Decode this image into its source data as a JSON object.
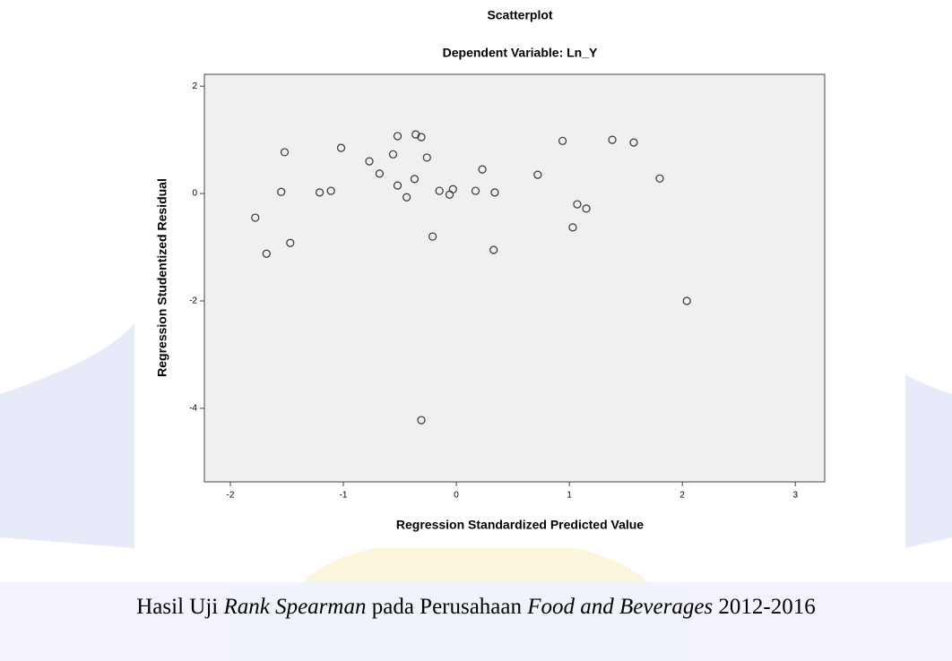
{
  "chart_data": {
    "type": "scatter",
    "title": "Scatterplot",
    "subtitle": "Dependent Variable: Ln_Y",
    "x_label": "Regression Standardized Predicted Value",
    "y_label": "Regression Studentized Residual",
    "color": "#333333",
    "xlim": [
      -2.23,
      3.26
    ],
    "ylim": [
      -5.37,
      2.22
    ],
    "xticks": [
      -2,
      -1,
      0,
      1,
      2,
      3
    ],
    "yticks": [
      -4,
      -2,
      0,
      2
    ],
    "x": [
      -1.78,
      -1.68,
      -1.55,
      -1.52,
      -1.47,
      -1.21,
      -1.11,
      -1.02,
      -0.77,
      -0.68,
      -0.56,
      -0.52,
      -0.52,
      -0.44,
      -0.36,
      -0.37,
      -0.31,
      -0.26,
      -0.21,
      -0.15,
      -0.06,
      -0.03,
      0.17,
      0.23,
      0.33,
      0.34,
      0.72,
      0.94,
      1.03,
      1.07,
      1.15,
      1.38,
      1.57,
      1.8,
      2.04,
      -0.31
    ],
    "values": [
      -0.45,
      -1.12,
      0.03,
      0.77,
      -0.92,
      0.02,
      0.05,
      0.85,
      0.6,
      0.37,
      0.73,
      1.07,
      0.15,
      -0.07,
      1.1,
      0.27,
      1.05,
      0.67,
      -0.8,
      0.05,
      -0.02,
      0.08,
      0.05,
      0.45,
      -1.05,
      0.02,
      0.35,
      0.98,
      -0.63,
      -0.2,
      -0.28,
      1.0,
      0.95,
      0.28,
      -2.0,
      -4.22
    ]
  },
  "caption": {
    "parts": [
      "Hasil Uji ",
      "Rank Spearman",
      " pada Perusahaan ",
      "Food and Beverages",
      " 2012-2016"
    ]
  }
}
